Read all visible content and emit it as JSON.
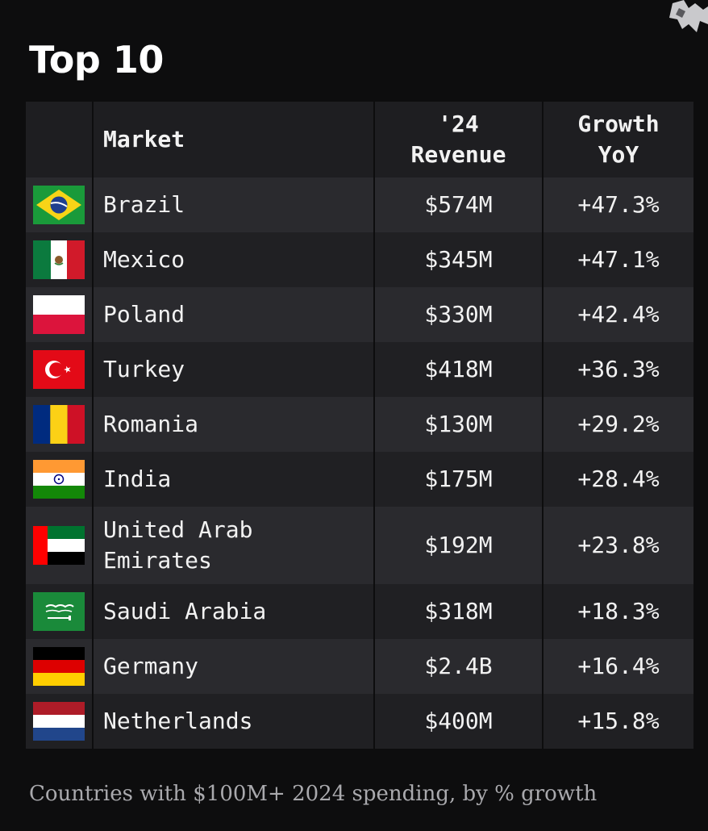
{
  "title": "Top 10",
  "footnote": "Countries with $100M+ 2024 spending, by % growth",
  "chart_data": {
    "type": "table",
    "columns": [
      "",
      "Market",
      "'24\nRevenue",
      "Growth\nYoY"
    ],
    "rows": [
      {
        "flag": "brazil-flag-icon",
        "market": "Brazil",
        "revenue": "$574M",
        "growth": "+47.3%"
      },
      {
        "flag": "mexico-flag-icon",
        "market": "Mexico",
        "revenue": "$345M",
        "growth": "+47.1%"
      },
      {
        "flag": "poland-flag-icon",
        "market": "Poland",
        "revenue": "$330M",
        "growth": "+42.4%"
      },
      {
        "flag": "turkey-flag-icon",
        "market": "Turkey",
        "revenue": "$418M",
        "growth": "+36.3%"
      },
      {
        "flag": "romania-flag-icon",
        "market": "Romania",
        "revenue": "$130M",
        "growth": "+29.2%"
      },
      {
        "flag": "india-flag-icon",
        "market": "India",
        "revenue": "$175M",
        "growth": "+28.4%"
      },
      {
        "flag": "uae-flag-icon",
        "market": "United Arab\nEmirates",
        "revenue": "$192M",
        "growth": "+23.8%"
      },
      {
        "flag": "saudi-arabia-flag-icon",
        "market": "Saudi Arabia",
        "revenue": "$318M",
        "growth": "+18.3%"
      },
      {
        "flag": "germany-flag-icon",
        "market": "Germany",
        "revenue": "$2.4B",
        "growth": "+16.4%"
      },
      {
        "flag": "netherlands-flag-icon",
        "market": "Netherlands",
        "revenue": "$400M",
        "growth": "+15.8%"
      }
    ]
  },
  "colors": {
    "background": "#0d0d0e",
    "header_bg": "#1e1e21",
    "row_odd": "#2a2a2e",
    "row_even": "#202023",
    "text": "#f2f2f2",
    "footnote": "#a9a9ad"
  }
}
